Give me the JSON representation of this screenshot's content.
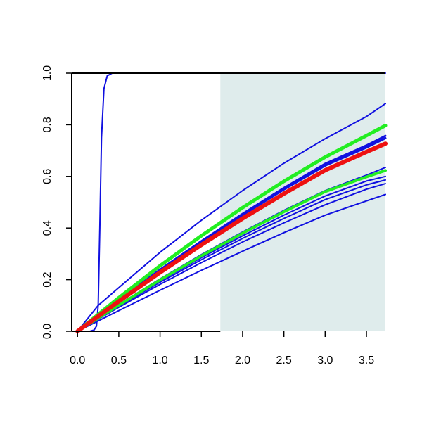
{
  "chart_data": {
    "type": "line",
    "title": "",
    "xlabel": "",
    "ylabel": "",
    "xlim": [
      -0.07,
      3.73
    ],
    "ylim": [
      0,
      1
    ],
    "x_ticks": [
      "0.0",
      "0.5",
      "1.0",
      "1.5",
      "2.0",
      "2.5",
      "3.0",
      "3.5"
    ],
    "y_ticks": [
      "0.0",
      "0.2",
      "0.4",
      "0.6",
      "0.8",
      "1.0"
    ],
    "shaded_region": {
      "x_start": 1.73,
      "x_end": 3.73,
      "y_start": 0,
      "y_end": 1,
      "color": "#dfecec"
    },
    "colors": {
      "blue": "#1010e0",
      "green": "#22ee22",
      "red": "#ee1111",
      "axis": "#000000"
    },
    "series": [
      {
        "color": "blue",
        "width": 2,
        "points": [
          [
            0.15,
            0
          ],
          [
            0.2,
            0.005
          ],
          [
            0.23,
            0.02
          ],
          [
            0.25,
            0.1
          ],
          [
            0.27,
            0.4
          ],
          [
            0.29,
            0.75
          ],
          [
            0.32,
            0.94
          ],
          [
            0.36,
            0.99
          ],
          [
            0.42,
            1.0
          ],
          [
            3.73,
            1.0
          ]
        ]
      },
      {
        "color": "blue",
        "width": 2,
        "points": [
          [
            0,
            0
          ],
          [
            0.25,
            0.1
          ],
          [
            0.5,
            0.169
          ],
          [
            1.0,
            0.306
          ],
          [
            1.5,
            0.43
          ],
          [
            2.0,
            0.545
          ],
          [
            2.5,
            0.651
          ],
          [
            3.0,
            0.746
          ],
          [
            3.5,
            0.832
          ],
          [
            3.73,
            0.882
          ]
        ]
      },
      {
        "color": "blue",
        "width": 3,
        "points": [
          [
            0,
            0
          ],
          [
            0.5,
            0.122
          ],
          [
            1.0,
            0.239
          ],
          [
            1.5,
            0.349
          ],
          [
            2.0,
            0.455
          ],
          [
            2.5,
            0.555
          ],
          [
            3.0,
            0.649
          ],
          [
            3.5,
            0.72
          ],
          [
            3.73,
            0.757
          ]
        ]
      },
      {
        "color": "blue",
        "width": 3,
        "points": [
          [
            0,
            0
          ],
          [
            0.5,
            0.12
          ],
          [
            1.0,
            0.236
          ],
          [
            1.5,
            0.345
          ],
          [
            2.0,
            0.45
          ],
          [
            2.5,
            0.549
          ],
          [
            3.0,
            0.642
          ],
          [
            3.5,
            0.712
          ],
          [
            3.73,
            0.748
          ]
        ]
      },
      {
        "color": "blue",
        "width": 2,
        "points": [
          [
            0,
            0
          ],
          [
            0.5,
            0.104
          ],
          [
            1.0,
            0.203
          ],
          [
            1.5,
            0.297
          ],
          [
            2.0,
            0.385
          ],
          [
            2.5,
            0.468
          ],
          [
            3.0,
            0.545
          ],
          [
            3.5,
            0.605
          ],
          [
            3.73,
            0.635
          ]
        ]
      },
      {
        "color": "blue",
        "width": 2,
        "points": [
          [
            0,
            0
          ],
          [
            0.5,
            0.1
          ],
          [
            1.0,
            0.195
          ],
          [
            1.5,
            0.285
          ],
          [
            2.0,
            0.37
          ],
          [
            2.5,
            0.45
          ],
          [
            3.0,
            0.524
          ],
          [
            3.5,
            0.582
          ],
          [
            3.73,
            0.6
          ]
        ]
      },
      {
        "color": "blue",
        "width": 2,
        "points": [
          [
            0,
            0
          ],
          [
            0.5,
            0.097
          ],
          [
            1.0,
            0.19
          ],
          [
            1.5,
            0.277
          ],
          [
            2.0,
            0.36
          ],
          [
            2.5,
            0.437
          ],
          [
            3.0,
            0.51
          ],
          [
            3.5,
            0.567
          ],
          [
            3.73,
            0.586
          ]
        ]
      },
      {
        "color": "blue",
        "width": 2,
        "points": [
          [
            0,
            0
          ],
          [
            0.5,
            0.093
          ],
          [
            1.0,
            0.182
          ],
          [
            1.5,
            0.266
          ],
          [
            2.0,
            0.346
          ],
          [
            2.5,
            0.42
          ],
          [
            3.0,
            0.49
          ],
          [
            3.5,
            0.55
          ],
          [
            3.73,
            0.572
          ]
        ]
      },
      {
        "color": "blue",
        "width": 2,
        "points": [
          [
            0,
            0
          ],
          [
            0.5,
            0.08
          ],
          [
            1.0,
            0.159
          ],
          [
            1.5,
            0.236
          ],
          [
            2.0,
            0.31
          ],
          [
            2.5,
            0.382
          ],
          [
            3.0,
            0.45
          ],
          [
            3.5,
            0.505
          ],
          [
            3.73,
            0.53
          ]
        ]
      },
      {
        "color": "green",
        "width": 5,
        "points": [
          [
            0,
            0
          ],
          [
            0.5,
            0.13
          ],
          [
            1.0,
            0.254
          ],
          [
            1.5,
            0.37
          ],
          [
            2.0,
            0.479
          ],
          [
            2.5,
            0.581
          ],
          [
            3.0,
            0.675
          ],
          [
            3.5,
            0.758
          ],
          [
            3.73,
            0.797
          ]
        ]
      },
      {
        "color": "green",
        "width": 4,
        "points": [
          [
            0,
            0
          ],
          [
            0.5,
            0.101
          ],
          [
            1.0,
            0.199
          ],
          [
            1.5,
            0.292
          ],
          [
            2.0,
            0.38
          ],
          [
            2.5,
            0.463
          ],
          [
            3.0,
            0.541
          ],
          [
            3.5,
            0.598
          ],
          [
            3.73,
            0.623
          ]
        ]
      },
      {
        "color": "red",
        "width": 6,
        "points": [
          [
            0,
            0
          ],
          [
            0.5,
            0.116
          ],
          [
            1.0,
            0.228
          ],
          [
            1.5,
            0.335
          ],
          [
            2.0,
            0.437
          ],
          [
            2.5,
            0.533
          ],
          [
            3.0,
            0.624
          ],
          [
            3.5,
            0.695
          ],
          [
            3.73,
            0.727
          ]
        ]
      }
    ]
  }
}
